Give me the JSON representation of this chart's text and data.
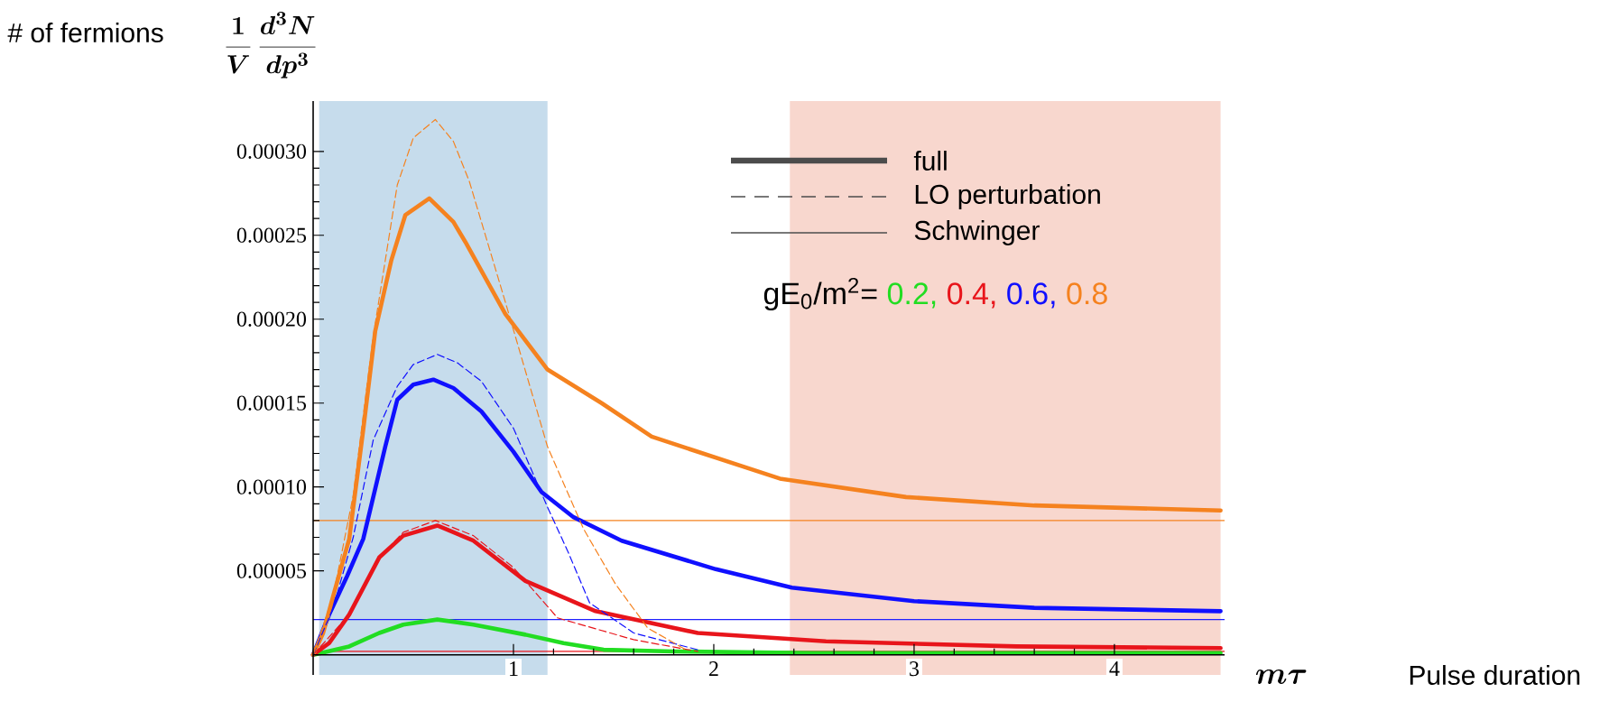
{
  "chart_data": {
    "type": "line",
    "ylabel": "# of fermions",
    "legend_title": "gE$_{0}$/m$^{2}$=",
    "legend": "top right",
    "marker": "none",
    "xlim": [
      0,
      4.55
    ],
    "ylim": [
      -1.2e-05,
      0.00033
    ],
    "xticks": [
      1,
      2,
      3,
      4
    ],
    "yticks": [
      {
        "value": 5e-05,
        "label": "0.00005"
      },
      {
        "value": 0.0001,
        "label": "0.00010"
      },
      {
        "value": 0.00015,
        "label": "0.00015"
      },
      {
        "value": 0.0002,
        "label": "0.00020"
      },
      {
        "value": 0.00025,
        "label": "0.00025"
      },
      {
        "value": 0.0003,
        "label": "0.00030"
      }
    ],
    "annotations": [
      "\\frac{1}{V}\\,\\frac{d^{3}N}{dp^{3}}",
      "m\\tau",
      "full",
      "LO perturbation",
      "Schwinger",
      "Pulse duration"
    ],
    "bands": [
      {
        "axis": "x",
        "from": 0.03,
        "to": 1.17,
        "color": "#c6dcec"
      },
      {
        "axis": "x",
        "from": 2.38,
        "to": 4.53,
        "color": "#f8d7ce"
      }
    ],
    "ref_lines": [
      {
        "axis": "y",
        "value": 8e-05,
        "color": "#f5821f",
        "line_style": "solid"
      },
      {
        "axis": "y",
        "value": 2.1e-05,
        "color": "#2020ff",
        "line_style": "solid"
      },
      {
        "axis": "y",
        "value": 2e-06,
        "color": "#e8151b",
        "line_style": "solid"
      }
    ],
    "series": [
      {
        "name": "0.2,",
        "color": "#22dd22",
        "line_style": "solid",
        "x": [
          0,
          0.18,
          0.33,
          0.45,
          0.62,
          0.8,
          1.06,
          1.25,
          1.45,
          1.8,
          2.5,
          3.5,
          4.53
        ],
        "values": [
          0,
          5e-06,
          1.3e-05,
          1.8e-05,
          2.1e-05,
          1.8e-05,
          1.2e-05,
          7e-06,
          3e-06,
          2e-06,
          1e-06,
          1e-06,
          1e-06
        ]
      },
      {
        "name": "0.4,",
        "color": "#e8151b",
        "line_style": "solid",
        "x": [
          0,
          0.08,
          0.18,
          0.33,
          0.45,
          0.62,
          0.8,
          1.06,
          1.41,
          1.92,
          2.56,
          3.51,
          4.53
        ],
        "values": [
          0,
          7e-06,
          2.4e-05,
          5.8e-05,
          7.1e-05,
          7.7e-05,
          6.8e-05,
          4.4e-05,
          2.6e-05,
          1.3e-05,
          8e-06,
          5e-06,
          4e-06
        ]
      },
      {
        "name": "0.6,",
        "color": "#1010ff",
        "line_style": "solid",
        "x": [
          0,
          0.08,
          0.17,
          0.25,
          0.36,
          0.42,
          0.5,
          0.6,
          0.7,
          0.84,
          1.0,
          1.14,
          1.3,
          1.54,
          2.01,
          2.39,
          3.0,
          3.6,
          4.53
        ],
        "values": [
          0,
          2.4e-05,
          4.7e-05,
          6.9e-05,
          0.000124,
          0.000152,
          0.000161,
          0.000164,
          0.000159,
          0.000145,
          0.000121,
          9.7e-05,
          8.2e-05,
          6.8e-05,
          5.1e-05,
          4e-05,
          3.2e-05,
          2.8e-05,
          2.6e-05
        ]
      },
      {
        "name": "0.8",
        "color": "#f5821f",
        "line_style": "solid",
        "x": [
          0,
          0.05,
          0.1,
          0.18,
          0.25,
          0.31,
          0.39,
          0.46,
          0.58,
          0.7,
          0.76,
          0.96,
          1.17,
          1.44,
          1.69,
          2.33,
          2.96,
          3.6,
          4.53
        ],
        "values": [
          0,
          1.3e-05,
          3.5e-05,
          6.9e-05,
          0.000134,
          0.000193,
          0.000235,
          0.000262,
          0.000272,
          0.000258,
          0.000246,
          0.000203,
          0.00017,
          0.00015,
          0.00013,
          0.000105,
          9.4e-05,
          8.9e-05,
          8.6e-05
        ]
      },
      {
        "color": "#e8151b",
        "line_style": "dashed",
        "x": [
          0,
          0.18,
          0.33,
          0.45,
          0.61,
          0.8,
          1.0,
          1.22,
          1.6,
          1.92
        ],
        "values": [
          0,
          2.4e-05,
          5.8e-05,
          7.3e-05,
          8e-05,
          7.1e-05,
          5.2e-05,
          2.2e-05,
          9e-06,
          2e-06
        ]
      },
      {
        "color": "#1010ff",
        "line_style": "dashed",
        "x": [
          0,
          0.1,
          0.2,
          0.3,
          0.42,
          0.5,
          0.62,
          0.72,
          0.84,
          1.0,
          1.17,
          1.27,
          1.38,
          1.6,
          1.92
        ],
        "values": [
          0,
          2.8e-05,
          7e-05,
          0.000128,
          0.00016,
          0.000173,
          0.000179,
          0.000174,
          0.000163,
          0.000135,
          8.8e-05,
          6.2e-05,
          3.1e-05,
          1.3e-05,
          3e-06
        ]
      },
      {
        "color": "#f5821f",
        "line_style": "dashed",
        "x": [
          0,
          0.1,
          0.2,
          0.3,
          0.42,
          0.5,
          0.61,
          0.7,
          0.78,
          0.96,
          1.17,
          1.35,
          1.51,
          1.67,
          1.86
        ],
        "values": [
          0,
          3.5e-05,
          9.5e-05,
          0.00019,
          0.00028,
          0.000308,
          0.000319,
          0.000306,
          0.000282,
          0.00021,
          0.000124,
          7.5e-05,
          4.2e-05,
          1.6e-05,
          3e-06
        ]
      }
    ]
  }
}
